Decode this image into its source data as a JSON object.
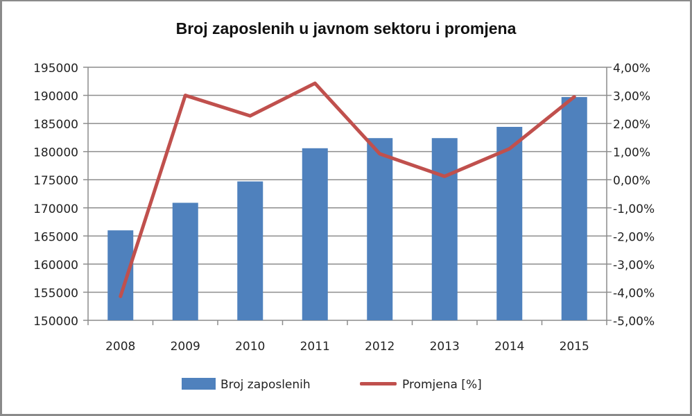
{
  "chart_data": {
    "type": "bar+line",
    "title": "Broj zaposlenih u javnom sektoru i promjena",
    "categories": [
      "2008",
      "2009",
      "2010",
      "2011",
      "2012",
      "2013",
      "2014",
      "2015"
    ],
    "series": [
      {
        "name": "Broj zaposlenih",
        "type": "bar",
        "axis": "left",
        "color": "#4f81bd",
        "values": [
          166000,
          170900,
          174700,
          180600,
          182400,
          182400,
          184400,
          189700
        ]
      },
      {
        "name": "Promjena [%]",
        "type": "line",
        "axis": "right",
        "color": "#c0504d",
        "values": [
          -4.15,
          3.0,
          2.27,
          3.43,
          0.92,
          0.12,
          1.1,
          2.95
        ]
      }
    ],
    "y_left": {
      "min": 150000,
      "max": 195000,
      "step": 5000,
      "ticks": [
        "195000",
        "190000",
        "185000",
        "180000",
        "175000",
        "170000",
        "165000",
        "160000",
        "155000",
        "150000"
      ]
    },
    "y_right": {
      "min": -5,
      "max": 4,
      "step": 1,
      "ticks": [
        "4,00%",
        "3,00%",
        "2,00%",
        "1,00%",
        "0,00%",
        "-1,00%",
        "-2,00%",
        "-3,00%",
        "-4,00%",
        "-5,00%"
      ]
    },
    "xlabel": "",
    "ylabel": "",
    "grid": true,
    "legend_position": "bottom"
  },
  "legend": {
    "bar_label": "Broj zaposlenih",
    "line_label": "Promjena [%]"
  }
}
